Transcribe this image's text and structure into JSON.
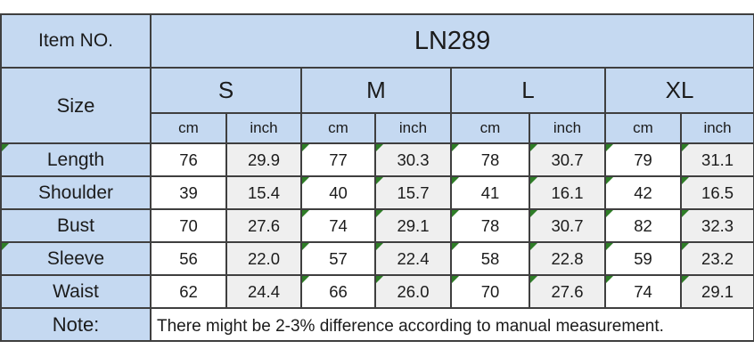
{
  "colors": {
    "header_fill": "#c5d9f1",
    "cell_white": "#ffffff",
    "cell_gray": "#efefef",
    "border": "#3f3f3f",
    "text": "#1b1b1b",
    "flag_triangle_green": "#2e7d27"
  },
  "size_chart": {
    "item_label": "Item NO.",
    "item_value": "LN289",
    "size_label": "Size",
    "size_columns": [
      "S",
      "M",
      "L",
      "XL"
    ],
    "unit_labels": [
      "cm",
      "inch"
    ],
    "measurement_rows": [
      {
        "label": "Length",
        "label_flagged": true,
        "values": [
          "76",
          "29.9",
          "77",
          "30.3",
          "78",
          "30.7",
          "79",
          "31.1"
        ],
        "flagged": [
          false,
          false,
          true,
          true,
          true,
          true,
          true,
          true
        ]
      },
      {
        "label": "Shoulder",
        "label_flagged": false,
        "values": [
          "39",
          "15.4",
          "40",
          "15.7",
          "41",
          "16.1",
          "42",
          "16.5"
        ],
        "flagged": [
          false,
          false,
          true,
          true,
          true,
          true,
          true,
          true
        ]
      },
      {
        "label": "Bust",
        "label_flagged": false,
        "values": [
          "70",
          "27.6",
          "74",
          "29.1",
          "78",
          "30.7",
          "82",
          "32.3"
        ],
        "flagged": [
          false,
          false,
          true,
          true,
          true,
          true,
          true,
          true
        ]
      },
      {
        "label": "Sleeve",
        "label_flagged": true,
        "values": [
          "56",
          "22.0",
          "57",
          "22.4",
          "58",
          "22.8",
          "59",
          "23.2"
        ],
        "flagged": [
          false,
          false,
          true,
          true,
          true,
          true,
          true,
          true
        ]
      },
      {
        "label": "Waist",
        "label_flagged": false,
        "values": [
          "62",
          "24.4",
          "66",
          "26.0",
          "70",
          "27.6",
          "74",
          "29.1"
        ],
        "flagged": [
          false,
          false,
          true,
          true,
          true,
          true,
          true,
          true
        ]
      }
    ],
    "note_label": "Note:",
    "note_text": "There might be 2-3% difference according to manual measurement."
  }
}
